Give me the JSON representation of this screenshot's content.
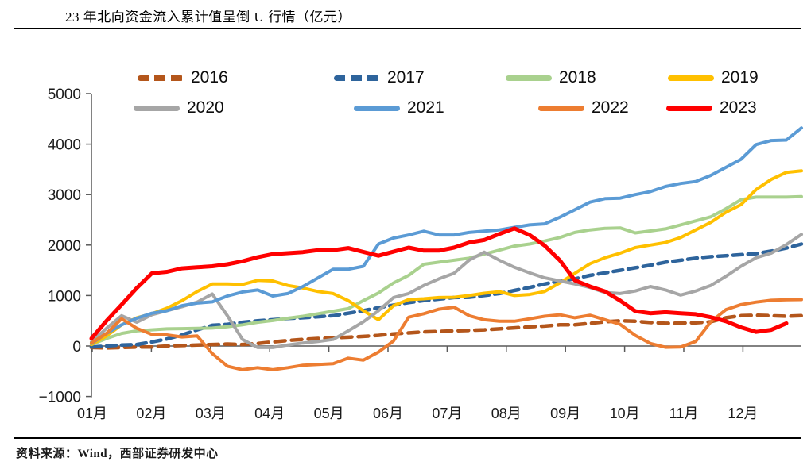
{
  "title": "23 年北向资金流入累计值呈倒 U 行情（亿元）",
  "source_note": "资料来源：Wind，西部证券研发中心",
  "chart_data": {
    "type": "line",
    "title": "23 年北向资金流入累计值呈倒 U 行情（亿元）",
    "unit": "亿元",
    "x_label_note": "months, data plotted weekly (4 points per month)",
    "x_labels": [
      "01月",
      "02月",
      "03月",
      "04月",
      "05月",
      "06月",
      "07月",
      "08月",
      "09月",
      "10月",
      "11月",
      "12月"
    ],
    "ylim": [
      -1000,
      5000
    ],
    "y_ticks": [
      5000,
      4000,
      3000,
      2000,
      1000,
      0,
      -1000
    ],
    "grid": false,
    "legend_position": "top",
    "series": [
      {
        "name": "2016",
        "color": "#B4561B",
        "dashed": true,
        "values": [
          -30,
          -40,
          -30,
          -20,
          -20,
          0,
          10,
          20,
          30,
          40,
          30,
          50,
          80,
          110,
          130,
          150,
          160,
          175,
          190,
          210,
          240,
          260,
          280,
          290,
          300,
          310,
          320,
          340,
          360,
          380,
          395,
          420,
          420,
          450,
          480,
          500,
          490,
          465,
          450,
          455,
          460,
          480,
          560,
          600,
          610,
          600,
          590,
          600
        ]
      },
      {
        "name": "2017",
        "color": "#2E649C",
        "dashed": true,
        "values": [
          -20,
          0,
          20,
          30,
          80,
          140,
          220,
          320,
          410,
          430,
          470,
          500,
          520,
          545,
          560,
          580,
          600,
          650,
          700,
          760,
          810,
          860,
          900,
          930,
          960,
          965,
          1000,
          1040,
          1100,
          1160,
          1230,
          1290,
          1330,
          1400,
          1450,
          1500,
          1550,
          1600,
          1660,
          1700,
          1740,
          1770,
          1790,
          1810,
          1830,
          1880,
          1940,
          2020
        ]
      },
      {
        "name": "2018",
        "color": "#A9D18E",
        "dashed": false,
        "values": [
          30,
          150,
          250,
          300,
          320,
          340,
          345,
          350,
          355,
          380,
          420,
          470,
          505,
          550,
          590,
          640,
          690,
          740,
          900,
          1050,
          1250,
          1400,
          1620,
          1660,
          1700,
          1740,
          1820,
          1900,
          1980,
          2020,
          2080,
          2150,
          2250,
          2300,
          2330,
          2340,
          2240,
          2280,
          2320,
          2400,
          2480,
          2560,
          2720,
          2900,
          2950,
          2950,
          2950,
          2960
        ]
      },
      {
        "name": "2019",
        "color": "#FFC000",
        "dashed": false,
        "values": [
          30,
          200,
          420,
          560,
          640,
          750,
          900,
          1080,
          1230,
          1230,
          1220,
          1300,
          1290,
          1200,
          1150,
          1080,
          1040,
          900,
          700,
          520,
          800,
          920,
          935,
          960,
          965,
          1000,
          1045,
          1075,
          1000,
          1020,
          1080,
          1250,
          1440,
          1630,
          1750,
          1840,
          1950,
          2000,
          2050,
          2150,
          2300,
          2450,
          2650,
          2800,
          3100,
          3300,
          3440,
          3470
        ]
      },
      {
        "name": "2020",
        "color": "#A6A6A6",
        "dashed": false,
        "values": [
          80,
          350,
          600,
          470,
          620,
          700,
          780,
          870,
          1030,
          600,
          130,
          -30,
          -30,
          20,
          60,
          90,
          130,
          300,
          480,
          700,
          960,
          1040,
          1200,
          1330,
          1440,
          1700,
          1860,
          1700,
          1560,
          1450,
          1350,
          1290,
          1230,
          1160,
          1060,
          1040,
          1090,
          1180,
          1110,
          1010,
          1090,
          1200,
          1380,
          1580,
          1750,
          1840,
          2010,
          2210
        ]
      },
      {
        "name": "2021",
        "color": "#5B9BD5",
        "dashed": false,
        "values": [
          50,
          250,
          420,
          550,
          650,
          700,
          800,
          850,
          875,
          990,
          1070,
          1110,
          990,
          1040,
          1180,
          1350,
          1520,
          1520,
          1580,
          2020,
          2140,
          2200,
          2275,
          2200,
          2200,
          2250,
          2275,
          2300,
          2350,
          2400,
          2420,
          2550,
          2700,
          2850,
          2920,
          2930,
          3000,
          3060,
          3160,
          3220,
          3260,
          3380,
          3540,
          3700,
          3990,
          4070,
          4080,
          4320
        ]
      },
      {
        "name": "2022",
        "color": "#ED7D31",
        "dashed": false,
        "values": [
          60,
          250,
          540,
          350,
          230,
          220,
          180,
          200,
          -150,
          -400,
          -470,
          -430,
          -470,
          -430,
          -380,
          -365,
          -350,
          -240,
          -280,
          -120,
          100,
          570,
          640,
          730,
          770,
          600,
          520,
          490,
          490,
          540,
          590,
          620,
          560,
          610,
          520,
          430,
          210,
          50,
          -25,
          -20,
          90,
          480,
          720,
          820,
          870,
          905,
          915,
          920
        ]
      },
      {
        "name": "2023",
        "color": "#FF0000",
        "dashed": false,
        "values": [
          150,
          500,
          820,
          1150,
          1440,
          1470,
          1540,
          1560,
          1580,
          1620,
          1680,
          1760,
          1820,
          1840,
          1860,
          1900,
          1900,
          1940,
          1865,
          1790,
          1870,
          1950,
          1890,
          1890,
          1950,
          2050,
          2100,
          2220,
          2330,
          2200,
          1990,
          1700,
          1300,
          1180,
          1080,
          900,
          690,
          650,
          670,
          650,
          630,
          570,
          490,
          370,
          280,
          320,
          450,
          null
        ]
      }
    ]
  }
}
